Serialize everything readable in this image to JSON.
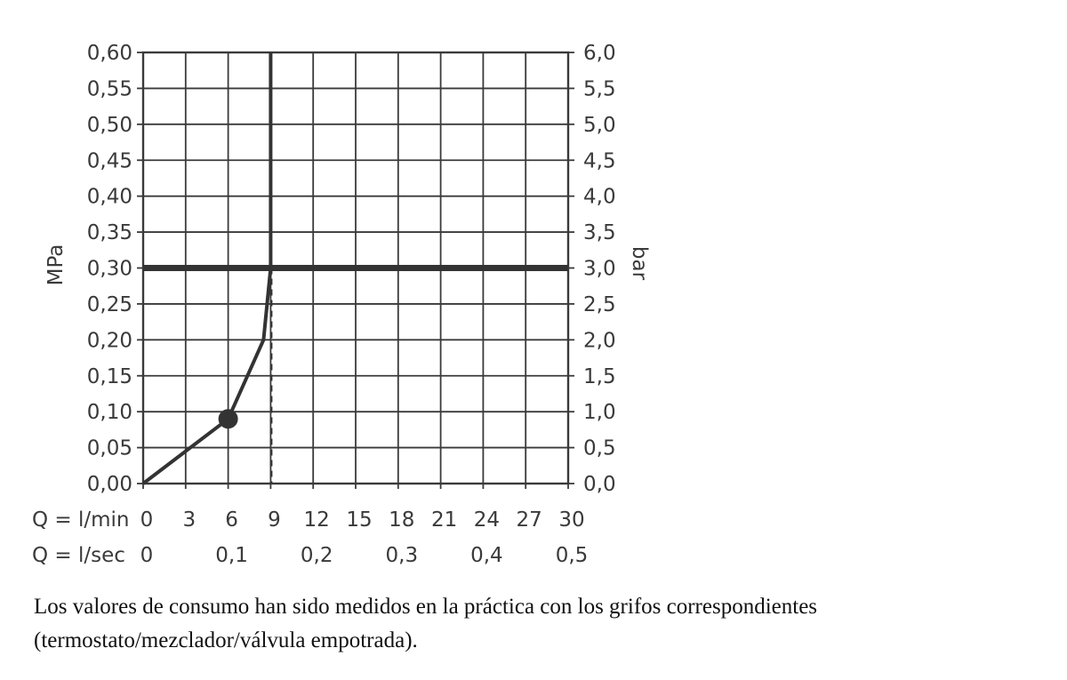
{
  "chart_data": {
    "type": "line",
    "x_axis_flow_lpm": {
      "label": "Q = l/min",
      "ticks": [
        "0",
        "3",
        "6",
        "9",
        "12",
        "15",
        "18",
        "21",
        "24",
        "27",
        "30"
      ],
      "range": [
        0,
        30
      ]
    },
    "x_axis_flow_lps": {
      "label": "Q = l/sec",
      "ticks": [
        "0",
        "0,1",
        "0,2",
        "0,3",
        "0,4",
        "0,5"
      ],
      "values": [
        0,
        0.1,
        0.2,
        0.3,
        0.4,
        0.5
      ]
    },
    "y_axis_mpa": {
      "label": "MPa",
      "ticks": [
        "0,00",
        "0,05",
        "0,10",
        "0,15",
        "0,20",
        "0,25",
        "0,30",
        "0,35",
        "0,40",
        "0,45",
        "0,50",
        "0,55",
        "0,60"
      ],
      "range": [
        0,
        0.6
      ]
    },
    "y_axis_bar": {
      "label": "bar",
      "ticks": [
        "0,0",
        "0,5",
        "1,0",
        "1,5",
        "2,0",
        "2,5",
        "3,0",
        "3,5",
        "4,0",
        "4,5",
        "5,0",
        "5,5",
        "6,0"
      ],
      "range": [
        0,
        6
      ]
    },
    "grid": true,
    "series": [
      {
        "style": "solid",
        "points": [
          [
            0,
            0
          ],
          [
            3,
            0.045
          ],
          [
            6,
            0.09
          ],
          [
            8.5,
            0.2
          ],
          [
            9,
            0.3
          ],
          [
            9,
            0.4
          ],
          [
            9,
            0.6
          ]
        ]
      }
    ],
    "reference_line_mpa": 0.3,
    "reference_vertical_flow": 9,
    "marker": [
      6,
      0.09
    ],
    "colors": {
      "line": "#333333",
      "grid": "#3a3a3a",
      "text": "#3a3a3a"
    }
  },
  "caption": "Los valores de consumo han sido medidos en la práctica con los grifos correspondientes (termostato/mezclador/válvula empotrada)."
}
